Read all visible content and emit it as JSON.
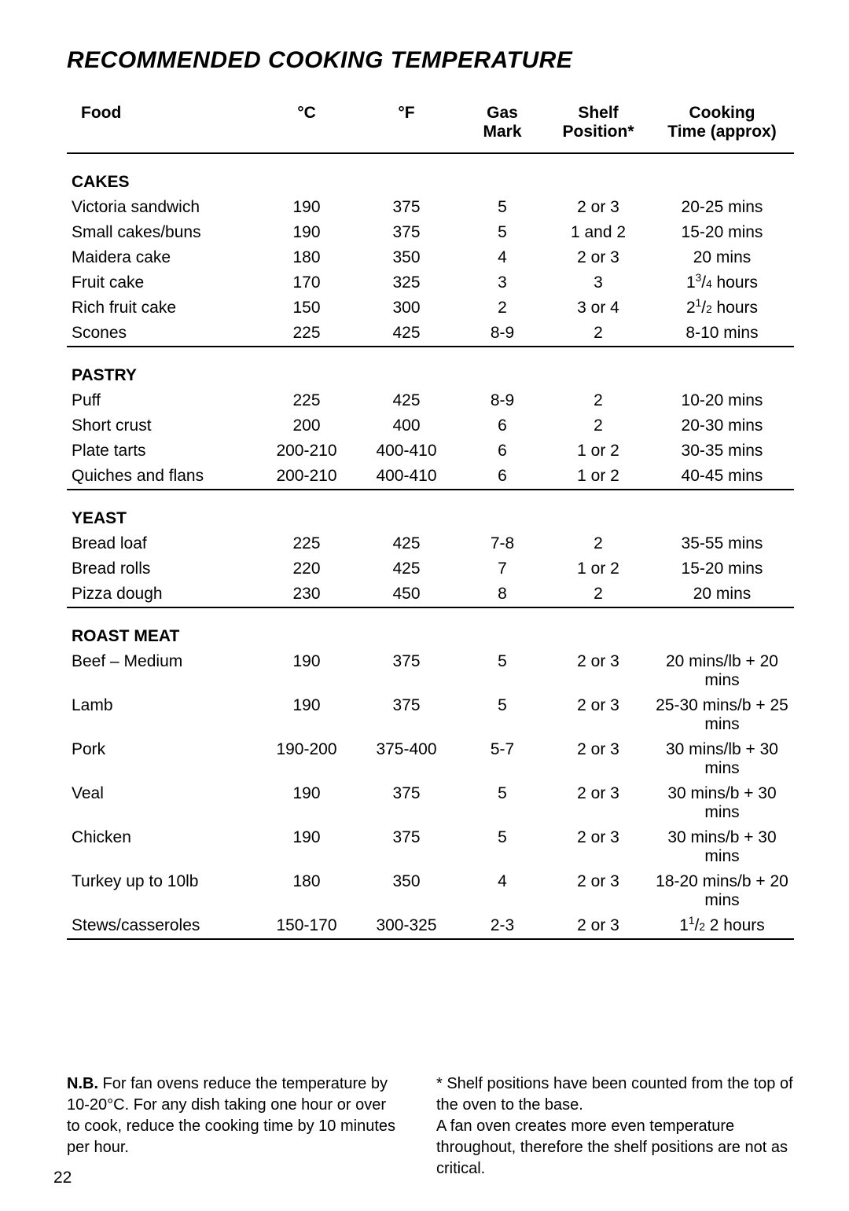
{
  "title": "RECOMMENDED COOKING TEMPERATURE",
  "columns": {
    "food": "Food",
    "c": "°C",
    "f": "°F",
    "gas1": "Gas",
    "gas2": "Mark",
    "shelf1": "Shelf",
    "shelf2": "Position*",
    "time1": "Cooking",
    "time2": "Time (approx)"
  },
  "sections": [
    {
      "name": "CAKES",
      "rows": [
        {
          "food": "Victoria sandwich",
          "c": "190",
          "f": "375",
          "gas": "5",
          "shelf": "2 or 3",
          "time": "20-25 mins"
        },
        {
          "food": "Small cakes/buns",
          "c": "190",
          "f": "375",
          "gas": "5",
          "shelf": "1 and 2",
          "time": "15-20 mins"
        },
        {
          "food": "Maidera cake",
          "c": "180",
          "f": "350",
          "gas": "4",
          "shelf": "2 or 3",
          "time": "20 mins"
        },
        {
          "food": "Fruit cake",
          "c": "170",
          "f": "325",
          "gas": "3",
          "shelf": "3",
          "time": "1{3/4} hours"
        },
        {
          "food": "Rich fruit cake",
          "c": "150",
          "f": "300",
          "gas": "2",
          "shelf": "3 or 4",
          "time": "2{1/2} hours"
        },
        {
          "food": "Scones",
          "c": "225",
          "f": "425",
          "gas": "8-9",
          "shelf": "2",
          "time": "8-10 mins"
        }
      ]
    },
    {
      "name": "PASTRY",
      "rows": [
        {
          "food": "Puff",
          "c": "225",
          "f": "425",
          "gas": "8-9",
          "shelf": "2",
          "time": "10-20 mins"
        },
        {
          "food": "Short crust",
          "c": "200",
          "f": "400",
          "gas": "6",
          "shelf": "2",
          "time": "20-30 mins"
        },
        {
          "food": "Plate tarts",
          "c": "200-210",
          "f": "400-410",
          "gas": "6",
          "shelf": "1 or 2",
          "time": "30-35 mins"
        },
        {
          "food": "Quiches and flans",
          "c": "200-210",
          "f": "400-410",
          "gas": "6",
          "shelf": "1 or 2",
          "time": "40-45 mins"
        }
      ]
    },
    {
      "name": "YEAST",
      "rows": [
        {
          "food": "Bread loaf",
          "c": "225",
          "f": "425",
          "gas": "7-8",
          "shelf": "2",
          "time": "35-55 mins"
        },
        {
          "food": "Bread rolls",
          "c": "220",
          "f": "425",
          "gas": "7",
          "shelf": "1 or 2",
          "time": "15-20 mins"
        },
        {
          "food": "Pizza dough",
          "c": "230",
          "f": "450",
          "gas": "8",
          "shelf": "2",
          "time": "20 mins"
        }
      ]
    },
    {
      "name": "ROAST MEAT",
      "rows": [
        {
          "food": "Beef – Medium",
          "c": "190",
          "f": "375",
          "gas": "5",
          "shelf": "2 or 3",
          "time": "20 mins/lb + 20 mins"
        },
        {
          "food": "Lamb",
          "c": "190",
          "f": "375",
          "gas": "5",
          "shelf": "2 or 3",
          "time": "25-30 mins/b + 25 mins"
        },
        {
          "food": "Pork",
          "c": "190-200",
          "f": "375-400",
          "gas": "5-7",
          "shelf": "2 or 3",
          "time": "30 mins/lb + 30 mins"
        },
        {
          "food": "Veal",
          "c": "190",
          "f": "375",
          "gas": "5",
          "shelf": "2 or 3",
          "time": "30 mins/b + 30 mins"
        },
        {
          "food": "Chicken",
          "c": "190",
          "f": "375",
          "gas": "5",
          "shelf": "2 or 3",
          "time": "30 mins/b + 30 mins"
        },
        {
          "food": "Turkey up to 10lb",
          "c": "180",
          "f": "350",
          "gas": "4",
          "shelf": "2 or 3",
          "time": "18-20 mins/b + 20 mins"
        },
        {
          "food": "Stews/casseroles",
          "c": "150-170",
          "f": "300-325",
          "gas": "2-3",
          "shelf": "2 or 3",
          "time": "1{1/2} 2 hours"
        }
      ]
    }
  ],
  "footnote_left_bold": "N.B.",
  "footnote_left": " For fan ovens reduce the temperature by 10-20°C. For any dish taking one hour or over to cook, reduce the cooking time by 10 minutes per hour.",
  "footnote_right": "* Shelf positions have been counted from the top of the oven to the base.\nA fan oven creates more even temperature throughout, therefore the shelf positions are not as critical.",
  "page_number": "22"
}
